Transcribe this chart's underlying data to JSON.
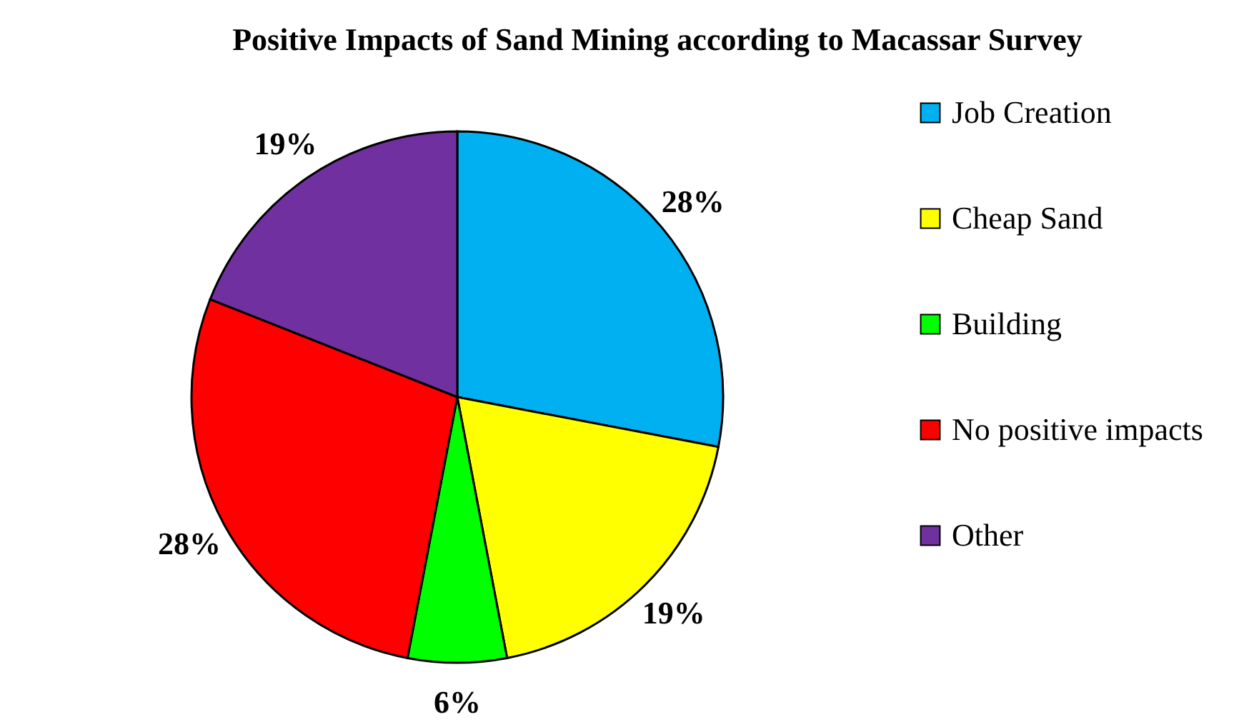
{
  "chart_data": {
    "type": "pie",
    "title": "Positive Impacts of Sand Mining according to Macassar Survey",
    "categories": [
      "Job Creation",
      "Cheap Sand",
      "Building",
      "No positive impacts",
      "Other"
    ],
    "values": [
      28,
      19,
      6,
      28,
      19
    ],
    "colors": [
      "#00b0f0",
      "#ffff00",
      "#00ff00",
      "#ff0000",
      "#7030a0"
    ],
    "value_labels": [
      "28%",
      "19%",
      "6%",
      "28%",
      "19%"
    ],
    "legend": "right"
  }
}
